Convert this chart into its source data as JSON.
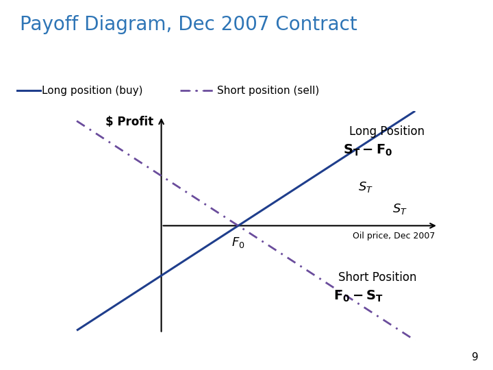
{
  "title": "Payoff Diagram, Dec 2007 Contract",
  "title_color": "#2E75B6",
  "title_fontsize": 20,
  "background_color": "#ffffff",
  "long_color": "#1F3E8C",
  "short_color": "#6A4C9C",
  "axis_color": "#000000",
  "legend_long_label": "Long position (buy)",
  "legend_short_label": "Short position (sell)",
  "ylabel": "$ Profit",
  "xlabel_suffix": "Oil price, Dec 2007",
  "long_position_label": "Long Position",
  "short_position_label": "Short Position",
  "note": "9"
}
